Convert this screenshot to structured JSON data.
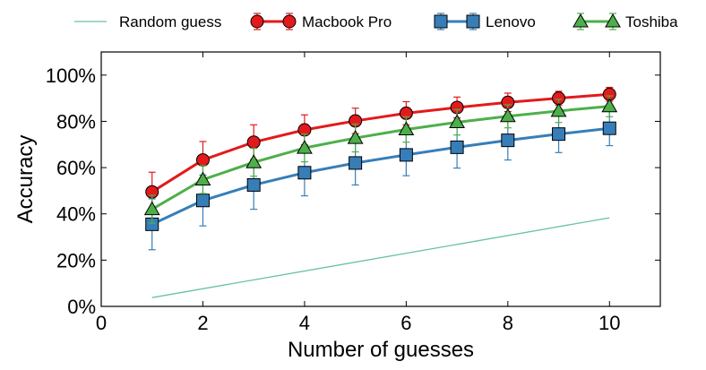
{
  "chart_data": {
    "type": "line",
    "title": "",
    "xlabel": "Number of guesses",
    "ylabel": "Accuracy",
    "xlim": [
      0,
      11
    ],
    "ylim": [
      0,
      110
    ],
    "x_ticks": [
      0,
      2,
      4,
      6,
      8,
      10
    ],
    "y_ticks": [
      0,
      20,
      40,
      60,
      80,
      100
    ],
    "y_tick_labels": [
      "0%",
      "20%",
      "40%",
      "60%",
      "80%",
      "100%"
    ],
    "x": [
      1,
      2,
      3,
      4,
      5,
      6,
      7,
      8,
      9,
      10
    ],
    "legend_position": "top",
    "grid": false,
    "series": [
      {
        "name": "Random guess",
        "color": "#66c2a5",
        "marker": "none",
        "x": [
          1,
          10
        ],
        "values": [
          3.8,
          38.3
        ],
        "errors": null
      },
      {
        "name": "Macbook Pro",
        "color": "#e31a1c",
        "marker": "circle",
        "x": [
          1,
          2,
          3,
          4,
          5,
          6,
          7,
          8,
          9,
          10
        ],
        "values": [
          49.5,
          63.3,
          71.0,
          76.3,
          80.2,
          83.5,
          86.0,
          88.2,
          90.0,
          91.7
        ],
        "errors": [
          8.5,
          8.0,
          7.5,
          6.5,
          5.5,
          5.0,
          4.5,
          4.0,
          3.0,
          3.0
        ]
      },
      {
        "name": "Lenovo",
        "color": "#377eb8",
        "marker": "square",
        "x": [
          1,
          2,
          3,
          4,
          5,
          6,
          7,
          8,
          9,
          10
        ],
        "values": [
          35.5,
          45.8,
          52.5,
          57.8,
          62.0,
          65.5,
          68.8,
          71.8,
          74.5,
          77.0
        ],
        "errors": [
          11.0,
          11.0,
          10.5,
          10.0,
          9.5,
          9.0,
          9.0,
          8.5,
          8.0,
          7.5
        ]
      },
      {
        "name": "Toshiba",
        "color": "#4daf4a",
        "marker": "triangle",
        "x": [
          1,
          2,
          3,
          4,
          5,
          6,
          7,
          8,
          9,
          10
        ],
        "values": [
          42.0,
          54.8,
          62.3,
          68.5,
          72.8,
          76.5,
          79.6,
          82.2,
          84.5,
          86.5
        ],
        "errors": [
          6.0,
          6.0,
          6.0,
          6.0,
          6.0,
          5.5,
          5.5,
          5.0,
          5.0,
          4.5
        ]
      }
    ]
  }
}
